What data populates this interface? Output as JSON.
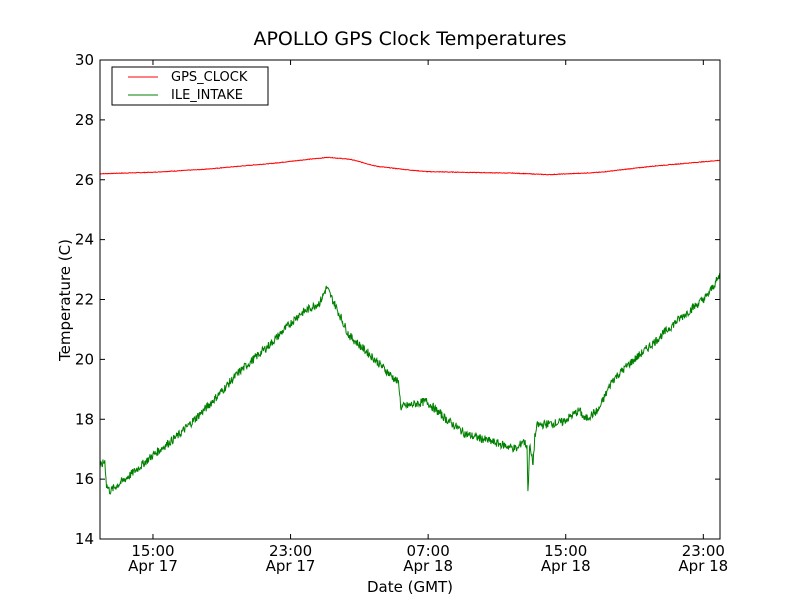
{
  "chart_data": {
    "type": "line",
    "title": "APOLLO GPS Clock Temperatures",
    "xlabel": "Date (GMT)",
    "ylabel": "Temperature (C)",
    "x_units": "hours since Apr 17 00:00 GMT",
    "xlim": [
      11.92,
      47.97
    ],
    "ylim": [
      14,
      30
    ],
    "yticks": [
      14,
      16,
      18,
      20,
      22,
      24,
      26,
      28,
      30
    ],
    "xticks": [
      {
        "value": 15,
        "time": "15:00",
        "date": "Apr 17"
      },
      {
        "value": 23,
        "time": "23:00",
        "date": "Apr 17"
      },
      {
        "value": 31,
        "time": "07:00",
        "date": "Apr 18"
      },
      {
        "value": 39,
        "time": "15:00",
        "date": "Apr 18"
      },
      {
        "value": 47,
        "time": "23:00",
        "date": "Apr 18"
      }
    ],
    "grid": false,
    "legend_position": "top-left",
    "series": [
      {
        "name": "GPS_CLOCK",
        "color": "#ff0000",
        "x": [
          11.92,
          15,
          18,
          22,
          24,
          25.2,
          26.5,
          28,
          30,
          31,
          33,
          36,
          38,
          40,
          41,
          44,
          46,
          47.97
        ],
        "y": [
          26.2,
          26.25,
          26.35,
          26.55,
          26.68,
          26.75,
          26.68,
          26.45,
          26.32,
          26.27,
          26.25,
          26.22,
          26.17,
          26.22,
          26.25,
          26.45,
          26.55,
          26.65
        ]
      },
      {
        "name": "ILE_INTAKE",
        "color": "#008000",
        "x": [
          11.92,
          12.2,
          12.3,
          12.5,
          13.6,
          15.0,
          16.55,
          18.3,
          20.05,
          21.8,
          23.5,
          24.7,
          25.1,
          25.6,
          26.4,
          27.9,
          29.3,
          29.4,
          30.9,
          32.05,
          33.2,
          35.0,
          36.2,
          36.5,
          36.75,
          36.8,
          36.9,
          37.1,
          37.2,
          37.35,
          38.8,
          39.8,
          40.1,
          40.9,
          41.7,
          42.6,
          44.0,
          45.5,
          47.2,
          47.97
        ],
        "y": [
          16.4,
          16.6,
          15.8,
          15.6,
          16.1,
          16.8,
          17.5,
          18.5,
          19.6,
          20.5,
          21.5,
          21.9,
          22.4,
          21.8,
          20.8,
          20.0,
          19.2,
          18.4,
          18.6,
          18.0,
          17.5,
          17.2,
          17.0,
          17.3,
          17.1,
          15.5,
          17.1,
          16.5,
          17.4,
          17.8,
          17.9,
          18.3,
          18.0,
          18.3,
          19.3,
          19.8,
          20.5,
          21.3,
          22.1,
          22.8
        ]
      }
    ]
  }
}
